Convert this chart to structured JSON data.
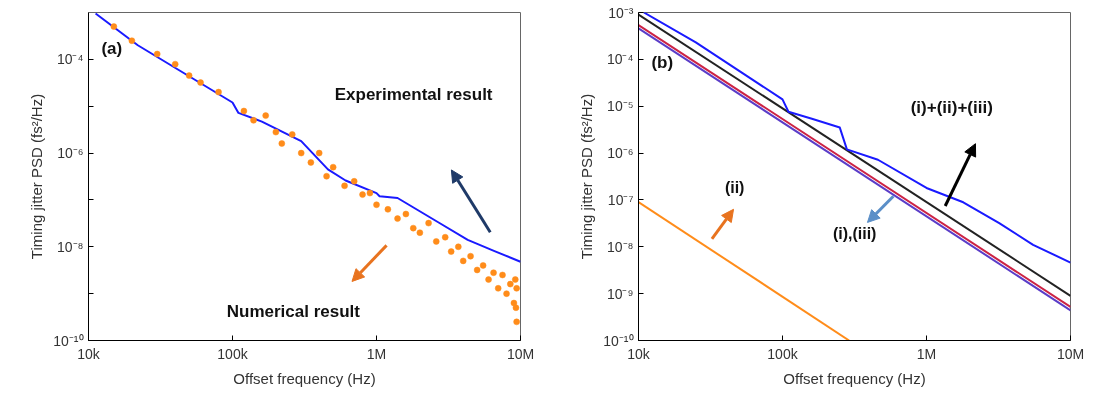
{
  "chart_data": [
    {
      "type": "line",
      "xlabel": "Offset frequency (Hz)",
      "ylabel": "Timing jitter PSD (fs²/Hz)",
      "log": "xy",
      "grid": false,
      "xlim": [
        10000,
        10000000
      ],
      "ylim": [
        1e-10,
        0.001
      ],
      "xticks": [
        {
          "value": 10000,
          "label": "10k"
        },
        {
          "value": 100000,
          "label": "100k"
        },
        {
          "value": 1000000,
          "label": "1M"
        },
        {
          "value": 10000000,
          "label": "10M"
        }
      ],
      "yticks": [
        {
          "value": 1e-10,
          "label": "10⁻¹⁰"
        },
        {
          "value": 1e-09,
          "label": null
        },
        {
          "value": 1e-08,
          "label": "10⁻⁸"
        },
        {
          "value": 1e-07,
          "label": null
        },
        {
          "value": 1e-06,
          "label": "10⁻⁶"
        },
        {
          "value": 1e-05,
          "label": null
        },
        {
          "value": 0.0001,
          "label": "10⁻⁴"
        }
      ],
      "series": [
        {
          "type": "scatter",
          "marker": "circle",
          "color": "#ff8c1a",
          "x": [
            15000,
            20000,
            30000,
            40000,
            50000,
            60000,
            80000,
            120000,
            140000,
            170000,
            200000,
            220000,
            260000,
            300000,
            350000,
            400000,
            450000,
            500000,
            600000,
            700000,
            800000,
            900000,
            1000000,
            1200000,
            1400000,
            1600000,
            1800000,
            2000000,
            2300000,
            2600000,
            3000000,
            3300000,
            3700000,
            4000000,
            4500000,
            5000000,
            5500000,
            6000000,
            6500000,
            7000000,
            7500000,
            8000000,
            8500000,
            9000000,
            9400000,
            9300000,
            9200000,
            9400000
          ],
          "values": [
            0.0005,
            0.00025,
            0.00013,
            7.9e-05,
            4.5e-05,
            3.2e-05,
            2e-05,
            7.9e-06,
            5e-06,
            6.3e-06,
            2.8e-06,
            1.6e-06,
            2.5e-06,
            1e-06,
            6.3e-07,
            1e-06,
            3.2e-07,
            5e-07,
            2e-07,
            2.5e-07,
            1.3e-07,
            1.4e-07,
            7.9e-08,
            6.3e-08,
            4e-08,
            5e-08,
            2.5e-08,
            2e-08,
            3.2e-08,
            1.3e-08,
            1.6e-08,
            7.9e-09,
            1e-08,
            5e-09,
            6.3e-09,
            3.2e-09,
            4e-09,
            2e-09,
            2.8e-09,
            1.3e-09,
            2.5e-09,
            1e-09,
            1.6e-09,
            6.3e-10,
            1.3e-09,
            5e-10,
            2e-09,
            2.5e-10
          ]
        },
        {
          "color": "#1a1aff",
          "x": [
            11200,
            22000,
            100000,
            110000,
            160000,
            270000,
            300000,
            460000,
            610000,
            1000000,
            1050000,
            1400000,
            2700000,
            4300000,
            6600000,
            10000000
          ],
          "values": [
            0.00095,
            0.0002,
            1.2e-05,
            7.2e-06,
            4.7e-06,
            2.1e-06,
            1.8e-06,
            4.5e-07,
            2.6e-07,
            1.4e-07,
            1.2e-07,
            1.1e-07,
            3.3e-08,
            1.4e-08,
            8.1e-09,
            4.8e-09
          ]
        }
      ],
      "annotations": [
        "(a)",
        "Experimental result",
        "Numerical result"
      ]
    },
    {
      "type": "line",
      "xlabel": "Offset frequency (Hz)",
      "ylabel": "Timing jitter PSD (fs²/Hz)",
      "log": "xy",
      "grid": false,
      "xlim": [
        10000,
        10000000
      ],
      "ylim": [
        1e-10,
        0.001
      ],
      "xticks": [
        {
          "value": 10000,
          "label": "10k"
        },
        {
          "value": 100000,
          "label": "100k"
        },
        {
          "value": 1000000,
          "label": "1M"
        },
        {
          "value": 10000000,
          "label": "10M"
        }
      ],
      "yticks": [
        {
          "value": 1e-10,
          "label": "10⁻¹⁰"
        },
        {
          "value": 1e-09,
          "label": "10⁻⁹"
        },
        {
          "value": 1e-08,
          "label": "10⁻⁸"
        },
        {
          "value": 1e-07,
          "label": "10⁻⁷"
        },
        {
          "value": 1e-06,
          "label": "10⁻⁶"
        },
        {
          "value": 1e-05,
          "label": "10⁻⁵"
        },
        {
          "value": 0.0001,
          "label": "10⁻⁴"
        },
        {
          "value": 0.001,
          "label": "10⁻³"
        }
      ],
      "series": [
        {
          "color": "#ff8c1a",
          "x": [
            10000,
            290000
          ],
          "values": [
            9e-08,
            1e-10
          ]
        },
        {
          "color": "#cc2244",
          "x": [
            10000,
            10000000
          ],
          "values": [
            0.00054,
            5.2e-10
          ]
        },
        {
          "color": "#5a3cc8",
          "x": [
            10000,
            10000000
          ],
          "values": [
            0.00046,
            4.4e-10
          ]
        },
        {
          "color": "#222222",
          "x": [
            10000,
            10000000
          ],
          "values": [
            0.0009,
            9e-10
          ]
        },
        {
          "color": "#1a1aff",
          "x": [
            10900,
            25000,
            100000,
            110000,
            160000,
            250000,
            280000,
            460000,
            1000000,
            1800000,
            3200000,
            5500000,
            10000000
          ],
          "values": [
            0.001,
            0.00023,
            1.4e-05,
            7.6e-06,
            5.4e-06,
            3.5e-06,
            1.2e-06,
            7.2e-07,
            1.8e-07,
            8.9e-08,
            3.2e-08,
            1.1e-08,
            4.6e-09
          ]
        }
      ],
      "annotations": [
        "(b)",
        "(i)+(ii)+(iii)",
        "(i),(iii)",
        "(ii)"
      ]
    }
  ]
}
